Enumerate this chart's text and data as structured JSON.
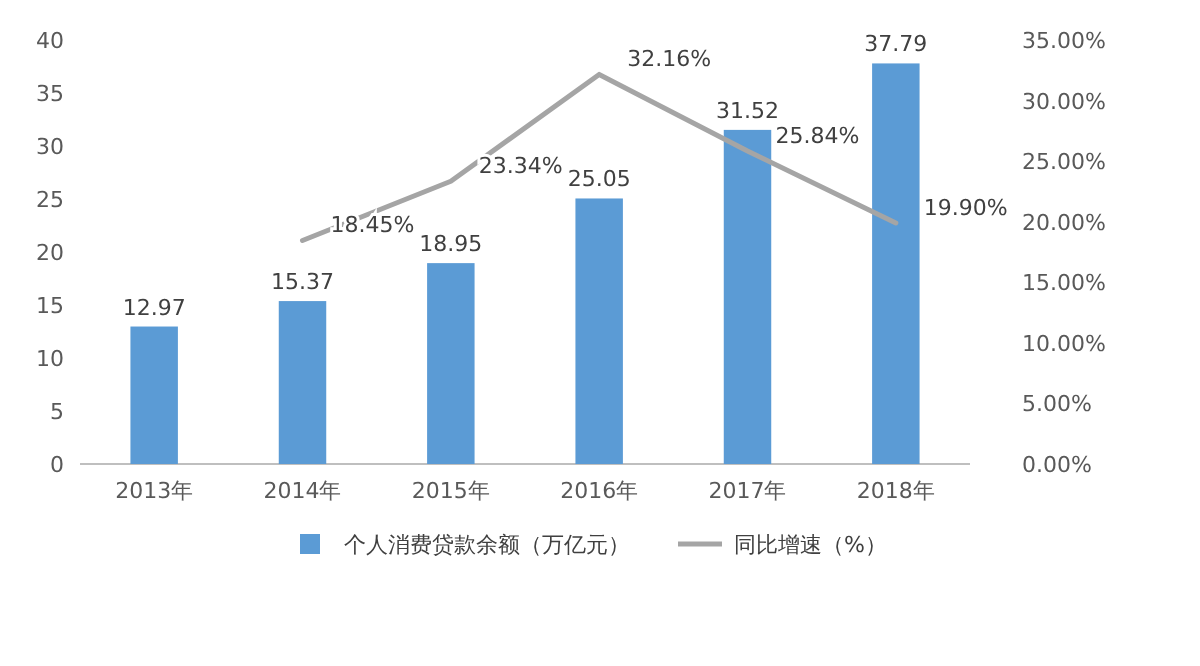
{
  "chart_data": {
    "type": "bar",
    "categories": [
      "2013年",
      "2014年",
      "2015年",
      "2016年",
      "2017年",
      "2018年"
    ],
    "series": [
      {
        "name": "个人消费贷款余额（万亿元）",
        "color": "#5b9bd5",
        "values": [
          12.97,
          15.37,
          18.95,
          25.05,
          31.52,
          37.79
        ],
        "value_labels": [
          "12.97",
          "15.37",
          "18.95",
          "25.05",
          "31.52",
          "37.79"
        ]
      },
      {
        "name": "同比增速（%）",
        "type": "line",
        "axis": "y2",
        "color": "#a5a5a5",
        "values": [
          null,
          18.45,
          23.34,
          32.16,
          25.84,
          19.9
        ],
        "value_labels": [
          null,
          "18.45%",
          "23.34%",
          "32.16%",
          "25.84%",
          "19.90%"
        ]
      }
    ],
    "ylim": [
      0,
      40
    ],
    "yticks": [
      0,
      5,
      10,
      15,
      20,
      25,
      30,
      35,
      40
    ],
    "y2lim": [
      0,
      35
    ],
    "y2ticks": [
      {
        "value": 0,
        "label": "0.00%"
      },
      {
        "value": 5,
        "label": "5.00%"
      },
      {
        "value": 10,
        "label": "10.00%"
      },
      {
        "value": 15,
        "label": "15.00%"
      },
      {
        "value": 20,
        "label": "20.00%"
      },
      {
        "value": 25,
        "label": "25.00%"
      },
      {
        "value": 30,
        "label": "30.00%"
      },
      {
        "value": 35,
        "label": "35.00%"
      }
    ],
    "legend": "bottom"
  }
}
